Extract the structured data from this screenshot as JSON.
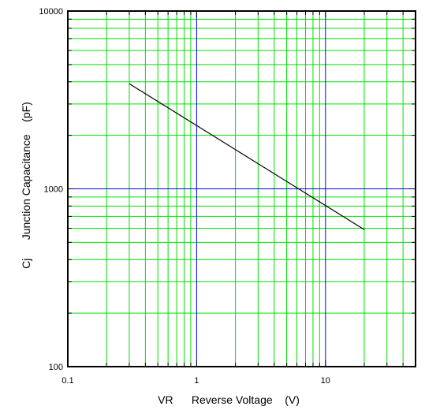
{
  "chart_data": {
    "type": "line",
    "xscale": "log",
    "yscale": "log",
    "xlim": [
      0.1,
      50
    ],
    "ylim": [
      100,
      10000
    ],
    "xticks": [
      {
        "value": 0.1,
        "label": "0.1"
      },
      {
        "value": 1,
        "label": "1"
      },
      {
        "value": 10,
        "label": "10"
      }
    ],
    "yticks": [
      {
        "value": 100,
        "label": "100"
      },
      {
        "value": 1000,
        "label": "1000"
      },
      {
        "value": 10000,
        "label": "10000"
      }
    ],
    "xlabel": "VR      Reverse Voltage    (V)",
    "ylabel": "Cj      Junction Capacitance    (pF)",
    "grid": true,
    "colors": {
      "minor_grid": "#00e000",
      "major_grid": "#0000ff",
      "line": "#000000"
    },
    "series": [
      {
        "x": [
          0.3,
          20
        ],
        "y": [
          3900,
          590
        ]
      }
    ]
  }
}
